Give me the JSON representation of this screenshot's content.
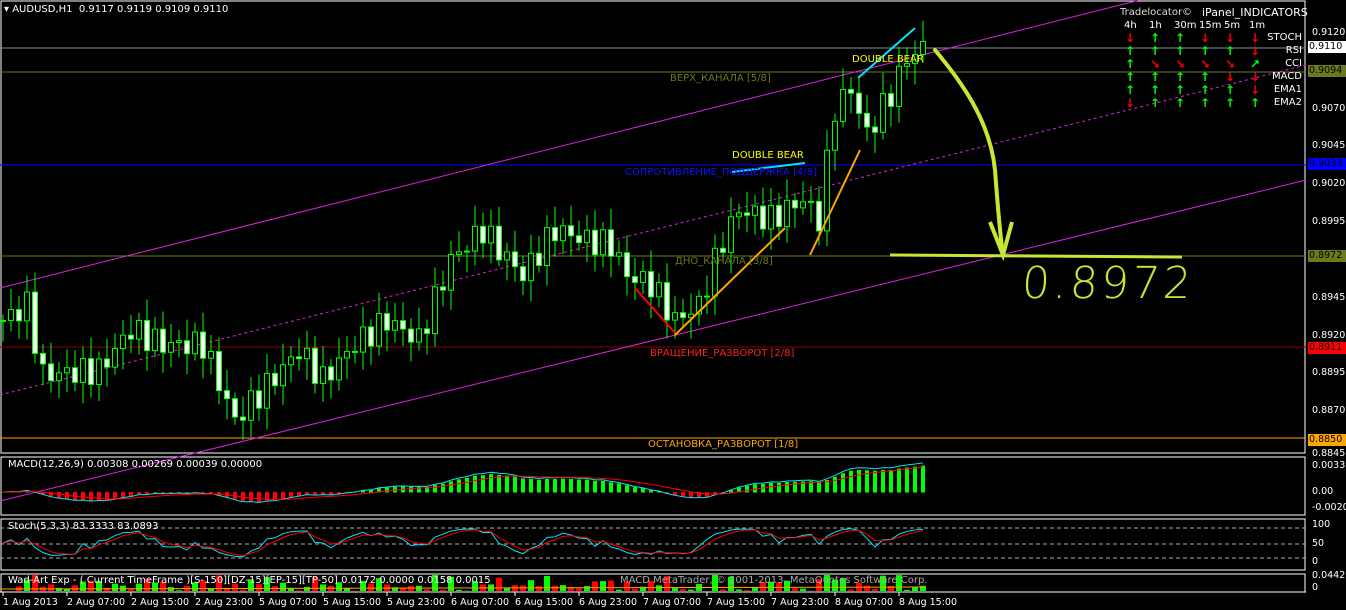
{
  "header": {
    "symbol": "AUDUSD,H1",
    "ohlc": "0.9117 0.9119 0.9109 0.9110"
  },
  "price_axis": {
    "ticks": [
      "0.9120",
      "0.9070",
      "0.9045",
      "0.9020",
      "0.8995",
      "0.8945",
      "0.8920",
      "0.8895",
      "0.8870",
      "0.8845"
    ],
    "tags": [
      {
        "value": "0.9110",
        "color": "#ffffff"
      },
      {
        "value": "0.9094",
        "color": "#6b7a1f"
      },
      {
        "value": "0.9033",
        "color": "#0000ff"
      },
      {
        "value": "0.8972",
        "color": "#6b7a1f"
      },
      {
        "value": "0.8911",
        "color": "#ff0000"
      },
      {
        "value": "0.8850",
        "color": "#ffa500"
      }
    ]
  },
  "levels": {
    "top": "ВЕРХ_КАНАЛА [5/8]",
    "resistance": "СОПРОТИВЛЕНИЕ_ПОДДЕРЖКА [4/8]",
    "bottom": "ДНО_КАНАЛА [3/8]",
    "rotation": "ВРАЩЕНИЕ_РАЗВОРОТ [2/8]",
    "stop": "ОСТАНОВКА_РАЗВОРОТ [1/8]"
  },
  "patterns": {
    "p1": "DOUBLE  BEAR",
    "p2": "DOUBLE  BEAR"
  },
  "annotation": {
    "target": "0.8972"
  },
  "ipanel": {
    "title": "iPanel_INDICATORS",
    "brand": "Tradelocator©",
    "timeframes": [
      "4h",
      "1h",
      "30m",
      "15m",
      "5m",
      "1m"
    ],
    "rows": [
      {
        "name": "STOCH",
        "signals": [
          "down",
          "up",
          "up",
          "down",
          "down",
          "down"
        ]
      },
      {
        "name": "RSI",
        "signals": [
          "up",
          "up",
          "up",
          "up",
          "up",
          "down"
        ]
      },
      {
        "name": "CCI",
        "signals": [
          "up",
          "down-right",
          "down-right",
          "down-right",
          "down-right",
          "up-right"
        ]
      },
      {
        "name": "MACD",
        "signals": [
          "up",
          "up",
          "up",
          "up",
          "down",
          "down"
        ]
      },
      {
        "name": "EMA1",
        "signals": [
          "up",
          "up",
          "up",
          "up",
          "up",
          "down"
        ]
      },
      {
        "name": "EMA2",
        "signals": [
          "down",
          "up",
          "up",
          "up",
          "up",
          "up"
        ]
      }
    ]
  },
  "macd": {
    "label": "MACD(12,26,9) 0.00308 0.00269 0.00039 0.00000",
    "ticks": [
      "0.00332",
      "0.00",
      "-0.00204"
    ]
  },
  "stoch": {
    "label": "Stoch(5,3,3) 83.3333 83.0893",
    "ticks": [
      "100",
      "80",
      "50",
      "20",
      "0"
    ]
  },
  "wad": {
    "label": "Wad-Art Exp - ( Current TimeFrame )[S-150][DZ-15][EP-15][TP-50] 0.0172 0.0000 0.0158 0.0015",
    "watermark": "MACD MetaTrader, © 2001-2013, MetaQuotes Software Corp.",
    "ticks": [
      "0.0442",
      "0"
    ]
  },
  "time_axis": [
    "1 Aug 2013",
    "2 Aug 07:00",
    "2 Aug 15:00",
    "2 Aug 23:00",
    "5 Aug 07:00",
    "5 Aug 15:00",
    "5 Aug 23:00",
    "6 Aug 07:00",
    "6 Aug 15:00",
    "6 Aug 23:00",
    "7 Aug 07:00",
    "7 Aug 15:00",
    "7 Aug 23:00",
    "8 Aug 07:00",
    "8 Aug 15:00"
  ],
  "chart_data": {
    "type": "candlestick",
    "symbol": "AUDUSD",
    "timeframe": "H1",
    "ylim": [
      0.8845,
      0.912
    ],
    "price_anchors": [
      [
        0,
        0.893
      ],
      [
        3,
        0.894
      ],
      [
        5,
        0.8894
      ],
      [
        12,
        0.8897
      ],
      [
        16,
        0.8924
      ],
      [
        20,
        0.8914
      ],
      [
        25,
        0.8914
      ],
      [
        29,
        0.8864
      ],
      [
        32,
        0.8881
      ],
      [
        37,
        0.891
      ],
      [
        40,
        0.8891
      ],
      [
        44,
        0.8914
      ],
      [
        48,
        0.893
      ],
      [
        52,
        0.8917
      ],
      [
        56,
        0.897
      ],
      [
        60,
        0.899
      ],
      [
        62,
        0.8977
      ],
      [
        65,
        0.896
      ],
      [
        69,
        0.899
      ],
      [
        73,
        0.8983
      ],
      [
        76,
        0.898
      ],
      [
        78,
        0.896
      ],
      [
        81,
        0.8954
      ],
      [
        84,
        0.893
      ],
      [
        87,
        0.894
      ],
      [
        90,
        0.8983
      ],
      [
        92,
        0.9003
      ],
      [
        96,
        0.8997
      ],
      [
        100,
        0.901
      ],
      [
        102,
        0.8997
      ],
      [
        104,
        0.907
      ],
      [
        106,
        0.9083
      ],
      [
        108,
        0.9053
      ],
      [
        111,
        0.908
      ],
      [
        113,
        0.9103
      ],
      [
        115,
        0.911
      ]
    ]
  }
}
